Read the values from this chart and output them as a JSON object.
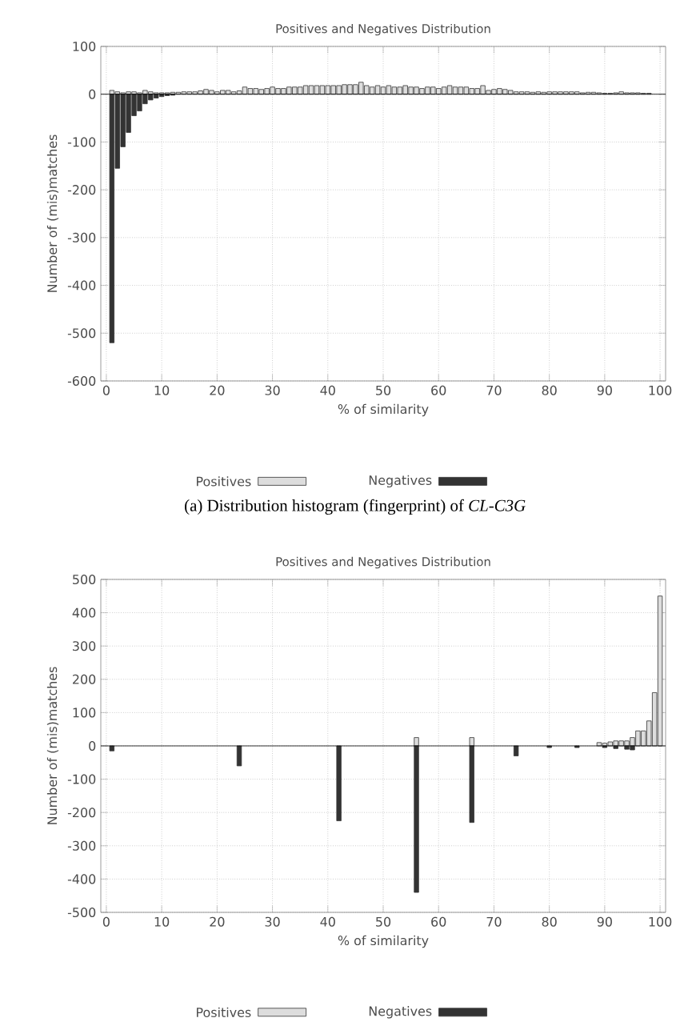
{
  "chart_data": [
    {
      "type": "bar",
      "title": "Positives and Negatives Distribution",
      "xlabel": "% of similarity",
      "ylabel": "Number of (mis)matches",
      "annotations": [
        "(a) Distribution histogram (fingerprint) of *CL-C3G*"
      ],
      "xlim": [
        -1,
        101
      ],
      "xticks": [
        0,
        10,
        20,
        30,
        40,
        50,
        60,
        70,
        80,
        90,
        100
      ],
      "ylim": [
        -600,
        100
      ],
      "yticks": [
        -600,
        -500,
        -400,
        -300,
        -200,
        -100,
        0,
        100
      ],
      "grid": true,
      "legend": "bottom",
      "series": [
        {
          "name": "Positives",
          "color": "#dddddd",
          "x": [
            1,
            2,
            3,
            4,
            5,
            6,
            7,
            8,
            9,
            10,
            11,
            12,
            13,
            14,
            15,
            16,
            17,
            18,
            19,
            20,
            21,
            22,
            23,
            24,
            25,
            26,
            27,
            28,
            29,
            30,
            31,
            32,
            33,
            34,
            35,
            36,
            37,
            38,
            39,
            40,
            41,
            42,
            43,
            44,
            45,
            46,
            47,
            48,
            49,
            50,
            51,
            52,
            53,
            54,
            55,
            56,
            57,
            58,
            59,
            60,
            61,
            62,
            63,
            64,
            65,
            66,
            67,
            68,
            69,
            70,
            71,
            72,
            73,
            74,
            75,
            76,
            77,
            78,
            79,
            80,
            81,
            82,
            83,
            84,
            85,
            86,
            87,
            88,
            89,
            90,
            91,
            92,
            93,
            94,
            95,
            96,
            97,
            98
          ],
          "values": [
            8,
            5,
            3,
            5,
            5,
            3,
            8,
            5,
            3,
            3,
            3,
            4,
            4,
            5,
            5,
            5,
            7,
            10,
            8,
            5,
            8,
            8,
            5,
            7,
            15,
            12,
            12,
            10,
            12,
            15,
            12,
            12,
            15,
            15,
            15,
            18,
            18,
            18,
            18,
            18,
            18,
            18,
            20,
            20,
            20,
            25,
            18,
            15,
            18,
            15,
            18,
            15,
            15,
            18,
            15,
            15,
            12,
            15,
            15,
            12,
            15,
            18,
            15,
            15,
            15,
            12,
            12,
            18,
            8,
            10,
            12,
            10,
            8,
            5,
            5,
            5,
            4,
            5,
            4,
            5,
            5,
            5,
            5,
            5,
            5,
            3,
            4,
            4,
            3,
            2,
            2,
            3,
            5,
            3,
            3,
            3,
            2,
            2
          ]
        },
        {
          "name": "Negatives",
          "color": "#333333",
          "x": [
            1,
            2,
            3,
            4,
            5,
            6,
            7,
            8,
            9,
            10,
            11,
            12
          ],
          "values": [
            -520,
            -155,
            -110,
            -80,
            -45,
            -35,
            -20,
            -12,
            -8,
            -5,
            -3,
            -2
          ]
        }
      ]
    },
    {
      "type": "bar",
      "title": "Positives and Negatives Distribution",
      "xlabel": "% of similarity",
      "ylabel": "Number of (mis)matches",
      "xlim": [
        -1,
        101
      ],
      "xticks": [
        0,
        10,
        20,
        30,
        40,
        50,
        60,
        70,
        80,
        90,
        100
      ],
      "ylim": [
        -500,
        500
      ],
      "yticks": [
        -500,
        -400,
        -300,
        -200,
        -100,
        0,
        100,
        200,
        300,
        400,
        500
      ],
      "grid": true,
      "legend": "bottom",
      "series": [
        {
          "name": "Positives",
          "color": "#dddddd",
          "x": [
            56,
            66,
            80,
            83,
            87,
            89,
            90,
            91,
            92,
            93,
            94,
            95,
            96,
            97,
            98,
            99,
            100
          ],
          "values": [
            25,
            25,
            null,
            null,
            null,
            10,
            8,
            12,
            15,
            15,
            15,
            25,
            45,
            45,
            75,
            160,
            450
          ]
        },
        {
          "name": "Negatives",
          "color": "#333333",
          "x": [
            1,
            24,
            42,
            56,
            66,
            74,
            80,
            85,
            88,
            90,
            92,
            94,
            95
          ],
          "values": [
            -15,
            -60,
            -225,
            -440,
            -230,
            -30,
            -5,
            -5,
            null,
            -5,
            -8,
            -10,
            -12
          ]
        }
      ]
    }
  ]
}
